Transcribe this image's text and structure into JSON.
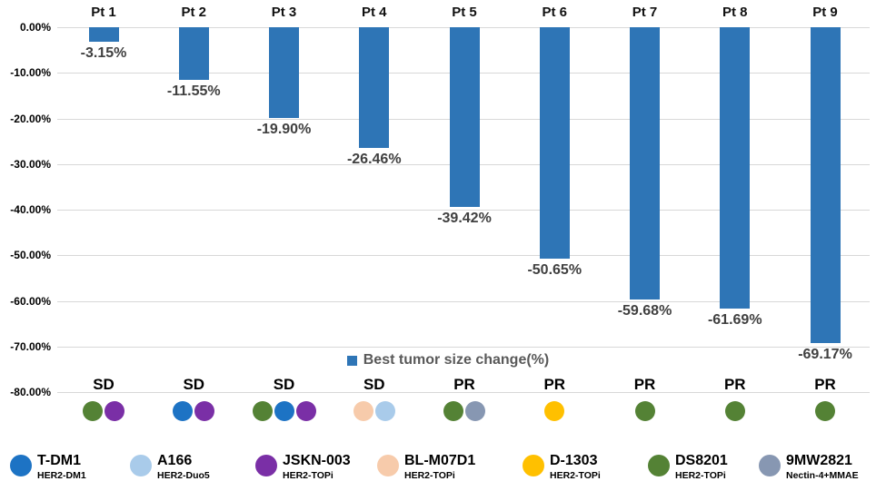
{
  "chart_data": {
    "type": "bar",
    "series_label": "Best tumor size change(%)",
    "bar_color": "#2E75B6",
    "categories": [
      "Pt 1",
      "Pt 2",
      "Pt 3",
      "Pt 4",
      "Pt 5",
      "Pt 6",
      "Pt 7",
      "Pt 8",
      "Pt 9"
    ],
    "values": [
      -3.15,
      -11.55,
      -19.9,
      -26.46,
      -39.42,
      -50.65,
      -59.68,
      -61.69,
      -69.17
    ],
    "value_labels": [
      "-3.15%",
      "-11.55%",
      "-19.90%",
      "-26.46%",
      "-39.42%",
      "-50.65%",
      "-59.68%",
      "-61.69%",
      "-69.17%"
    ],
    "statuses": [
      "SD",
      "SD",
      "SD",
      "SD",
      "PR",
      "PR",
      "PR",
      "PR",
      "PR"
    ],
    "prior_treatments": [
      [
        "DS8201",
        "JSKN-003"
      ],
      [
        "T-DM1",
        "JSKN-003"
      ],
      [
        "DS8201",
        "T-DM1",
        "JSKN-003"
      ],
      [
        "BL-M07D1",
        "A166"
      ],
      [
        "DS8201",
        "9MW2821"
      ],
      [
        "D-1303"
      ],
      [
        "DS8201"
      ],
      [
        "DS8201"
      ],
      [
        "DS8201"
      ]
    ],
    "ylim": [
      0,
      -80
    ],
    "ytick_labels": [
      "0.00%",
      "-10.00%",
      "-20.00%",
      "-30.00%",
      "-40.00%",
      "-50.00%",
      "-60.00%",
      "-70.00%",
      "-80.00%"
    ],
    "grid": "horizontal",
    "legend_position": "inside-bottom-center"
  },
  "drug_legend": {
    "items": [
      {
        "name": "T-DM1",
        "sub": "HER2-DM1",
        "color": "#1D73C4"
      },
      {
        "name": "A166",
        "sub": "HER2-Duo5",
        "color": "#A9CBEA"
      },
      {
        "name": "JSKN-003",
        "sub": "HER2-TOPi",
        "color": "#7A2FA6"
      },
      {
        "name": "BL-M07D1",
        "sub": "HER2-TOPi",
        "color": "#F7CBAB"
      },
      {
        "name": "D-1303",
        "sub": "HER2-TOPi",
        "color": "#FFC000"
      },
      {
        "name": "DS8201",
        "sub": "HER2-TOPi",
        "color": "#548235"
      },
      {
        "name": "9MW2821",
        "sub": "Nectin-4+MMAE",
        "color": "#8797B2"
      }
    ]
  }
}
